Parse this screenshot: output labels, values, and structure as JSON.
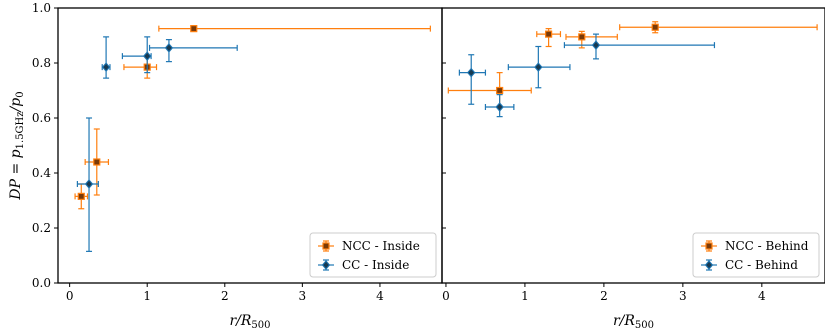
{
  "chart_data": [
    {
      "type": "scatter",
      "panel": "left",
      "xlabel": "r/R500",
      "ylabel": "DP = p1.5GHz/p0",
      "xlim": [
        -0.15,
        4.8
      ],
      "ylim": [
        0,
        1.0
      ],
      "xticks": [
        "0",
        "1",
        "2",
        "3",
        "4"
      ],
      "yticks": [
        "0.0",
        "0.2",
        "0.4",
        "0.6",
        "0.8",
        "1.0"
      ],
      "legend_position": "bottom-right",
      "series": [
        {
          "name": "NCC - Inside",
          "color": "#ff7f0e",
          "marker": "square",
          "points": [
            {
              "x": 0.15,
              "y": 0.315,
              "xerr": [
                0.08,
                0.08
              ],
              "yerr": [
                0.045,
                0.045
              ]
            },
            {
              "x": 0.35,
              "y": 0.44,
              "xerr": [
                0.15,
                0.15
              ],
              "yerr": [
                0.12,
                0.12
              ]
            },
            {
              "x": 1.0,
              "y": 0.785,
              "xerr": [
                0.3,
                0.12
              ],
              "yerr": [
                0.04,
                0.04
              ]
            },
            {
              "x": 1.6,
              "y": 0.925,
              "xerr": [
                0.45,
                3.05
              ],
              "yerr": [
                0.01,
                0.01
              ]
            }
          ]
        },
        {
          "name": "CC - Inside",
          "color": "#1f77b4",
          "marker": "diamond",
          "points": [
            {
              "x": 0.25,
              "y": 0.36,
              "xerr": [
                0.15,
                0.12
              ],
              "yerr": [
                0.245,
                0.24
              ]
            },
            {
              "x": 0.47,
              "y": 0.785,
              "xerr": [
                0.05,
                0.05
              ],
              "yerr": [
                0.04,
                0.11
              ]
            },
            {
              "x": 1.0,
              "y": 0.825,
              "xerr": [
                0.32,
                0.05
              ],
              "yerr": [
                0.06,
                0.07
              ]
            },
            {
              "x": 1.28,
              "y": 0.855,
              "xerr": [
                0.25,
                0.88
              ],
              "yerr": [
                0.05,
                0.03
              ]
            }
          ]
        }
      ]
    },
    {
      "type": "scatter",
      "panel": "right",
      "xlabel": "r/R500",
      "xlim": [
        -0.05,
        4.8
      ],
      "ylim": [
        0,
        1.0
      ],
      "xticks": [
        "0",
        "1",
        "2",
        "3",
        "4"
      ],
      "legend_position": "bottom-right",
      "series": [
        {
          "name": "NCC - Behind",
          "color": "#ff7f0e",
          "marker": "square",
          "points": [
            {
              "x": 0.68,
              "y": 0.7,
              "xerr": [
                0.65,
                0.4
              ],
              "yerr": [
                0.06,
                0.065
              ]
            },
            {
              "x": 1.3,
              "y": 0.905,
              "xerr": [
                0.15,
                0.15
              ],
              "yerr": [
                0.045,
                0.02
              ]
            },
            {
              "x": 1.72,
              "y": 0.895,
              "xerr": [
                0.2,
                0.45
              ],
              "yerr": [
                0.04,
                0.02
              ]
            },
            {
              "x": 2.65,
              "y": 0.93,
              "xerr": [
                0.45,
                2.05
              ],
              "yerr": [
                0.02,
                0.02
              ]
            }
          ]
        },
        {
          "name": "CC - Behind",
          "color": "#1f77b4",
          "marker": "diamond",
          "points": [
            {
              "x": 0.32,
              "y": 0.765,
              "xerr": [
                0.15,
                0.18
              ],
              "yerr": [
                0.115,
                0.065
              ]
            },
            {
              "x": 0.68,
              "y": 0.64,
              "xerr": [
                0.18,
                0.18
              ],
              "yerr": [
                0.035,
                0.045
              ]
            },
            {
              "x": 1.17,
              "y": 0.785,
              "xerr": [
                0.38,
                0.4
              ],
              "yerr": [
                0.075,
                0.075
              ]
            },
            {
              "x": 1.9,
              "y": 0.865,
              "xerr": [
                0.4,
                1.5
              ],
              "yerr": [
                0.05,
                0.04
              ]
            }
          ]
        }
      ]
    }
  ]
}
